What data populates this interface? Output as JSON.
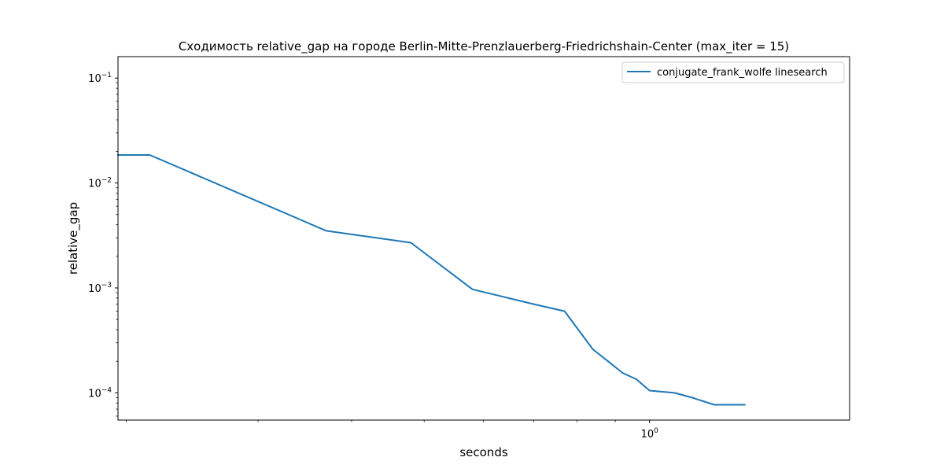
{
  "chart_data": {
    "type": "line",
    "title": "Сходимость relative_gap на городе Berlin-Mitte-Prenzlauerberg-Friedrichshain-Center  (max_iter = 15)",
    "xlabel": "seconds",
    "ylabel": "relative_gap",
    "xscale": "log",
    "yscale": "log",
    "xlim": [
      0.195,
      1.85
    ],
    "ylim": [
      5.5e-05,
      0.16
    ],
    "x_ticks": [
      {
        "value": 1.0,
        "base": "10",
        "exp": "0"
      }
    ],
    "y_ticks": [
      {
        "value": 0.1,
        "base": "10",
        "exp": "−1"
      },
      {
        "value": 0.01,
        "base": "10",
        "exp": "−2"
      },
      {
        "value": 0.001,
        "base": "10",
        "exp": "−3"
      },
      {
        "value": 0.0001,
        "base": "10",
        "exp": "−4"
      }
    ],
    "legend_position": "top-right",
    "grid": false,
    "series": [
      {
        "name": "conjugate_frank_wolfe linesearch",
        "color": "#1f77b4",
        "x": [
          0.195,
          0.215,
          0.37,
          0.48,
          0.58,
          0.7,
          0.77,
          0.84,
          0.88,
          0.92,
          0.96,
          1.0,
          1.08,
          1.14,
          1.22,
          1.34
        ],
        "y": [
          0.0185,
          0.0185,
          0.0035,
          0.0027,
          0.00097,
          0.0007,
          0.0006,
          0.00026,
          0.0002,
          0.000155,
          0.000135,
          0.000105,
          0.0001,
          9e-05,
          7.7e-05,
          7.7e-05
        ]
      }
    ]
  }
}
